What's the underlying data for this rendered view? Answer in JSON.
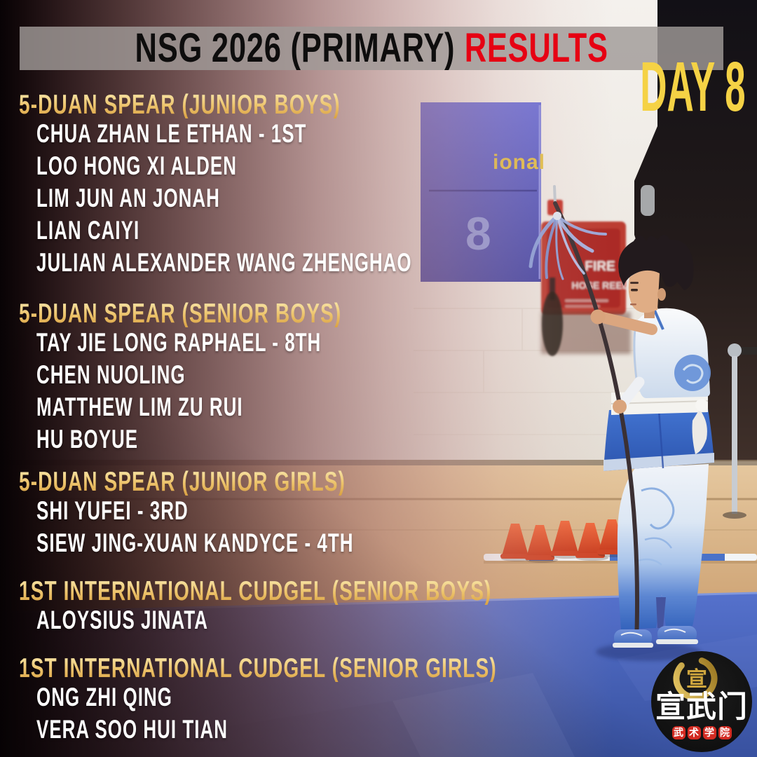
{
  "banner": {
    "title": "NSG 2026 (PRIMARY)",
    "highlight": "RESULTS"
  },
  "day_label": "DAY 8",
  "sections": [
    {
      "title": "5-DUAN SPEAR (JUNIOR BOYS)",
      "names": [
        "CHUA ZHAN LE ETHAN - 1ST",
        "LOO HONG XI ALDEN",
        "LIM JUN AN JONAH",
        "LIAN CAIYI",
        "JULIAN ALEXANDER WANG ZHENGHAO"
      ]
    },
    {
      "title": "5-DUAN SPEAR (SENIOR BOYS)",
      "names": [
        "TAY JIE LONG RAPHAEL - 8TH",
        "CHEN NUOLING",
        "MATTHEW LIM ZU RUI",
        "HU BOYUE"
      ]
    },
    {
      "title": "5-DUAN SPEAR (JUNIOR GIRLS)",
      "names": [
        "SHI YUFEI - 3RD",
        "SIEW JING-XUAN KANDYCE - 4TH"
      ]
    },
    {
      "title": "1ST INTERNATIONAL CUDGEL (SENIOR BOYS)",
      "names": [
        "ALOYSIUS JINATA"
      ]
    },
    {
      "title": "1ST INTERNATIONAL CUDGEL (SENIOR GIRLS)",
      "names": [
        "ONG ZHI QING",
        "VERA SOO HUI TIAN"
      ]
    }
  ],
  "photo": {
    "sign_text_fragment": "ional",
    "sign_number": "8",
    "fire_sign_line1": "FIRE",
    "fire_sign_line2": "HOSE REEL"
  },
  "logo": {
    "emblem_char": "宣",
    "name": "宣武门",
    "subtitle": "武术学院"
  },
  "colors": {
    "accent_gold": "#ecc26a",
    "accent_red": "#e60013",
    "day_yellow": "#f5d245",
    "banner_gray": "#a09a97",
    "mat_blue": "#4a63bc"
  }
}
